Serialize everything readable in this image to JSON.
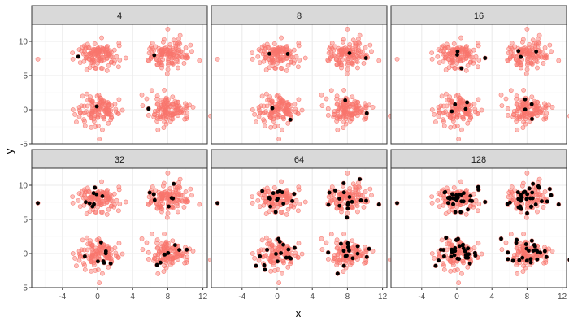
{
  "chart_data": {
    "type": "scatter",
    "facet_by": "number of highlighted points",
    "facets": [
      {
        "label": "4",
        "n": 4
      },
      {
        "label": "8",
        "n": 8
      },
      {
        "label": "16",
        "n": 16
      },
      {
        "label": "32",
        "n": 32
      },
      {
        "label": "64",
        "n": 64
      },
      {
        "label": "128",
        "n": 128
      }
    ],
    "layout": {
      "rows": 2,
      "cols": 3
    },
    "xlabel": "x",
    "ylabel": "y",
    "xlim": [
      -7.5,
      12.5
    ],
    "ylim": [
      -5,
      12.5
    ],
    "x_ticks": [
      -4,
      0,
      4,
      8,
      12
    ],
    "y_ticks": [
      -5,
      0,
      5,
      10
    ],
    "clusters": [
      {
        "center": [
          0,
          8
        ],
        "sd": [
          1.1,
          0.85
        ]
      },
      {
        "center": [
          8,
          8
        ],
        "sd": [
          1.1,
          0.95
        ]
      },
      {
        "center": [
          0,
          0
        ],
        "sd": [
          1.1,
          1.1
        ]
      },
      {
        "center": [
          8,
          0
        ],
        "sd": [
          1.2,
          1.1
        ]
      }
    ],
    "background_points_per_cluster": 120,
    "outliers": [
      [
        -6.8,
        7.4
      ],
      [
        11.6,
        7.2
      ],
      [
        0.2,
        -4.3
      ],
      [
        8.0,
        11.8
      ],
      [
        5.6,
        1.6
      ],
      [
        -2.8,
        0.0
      ]
    ],
    "grid": true,
    "legend": "none",
    "colors": {
      "background_points": "#f8766d",
      "highlighted_points": "#000000",
      "panel_border": "#333333",
      "strip_fill": "#d9d9d9",
      "grid_major": "#ebebeb",
      "grid_minor": "#f5f5f5"
    }
  }
}
